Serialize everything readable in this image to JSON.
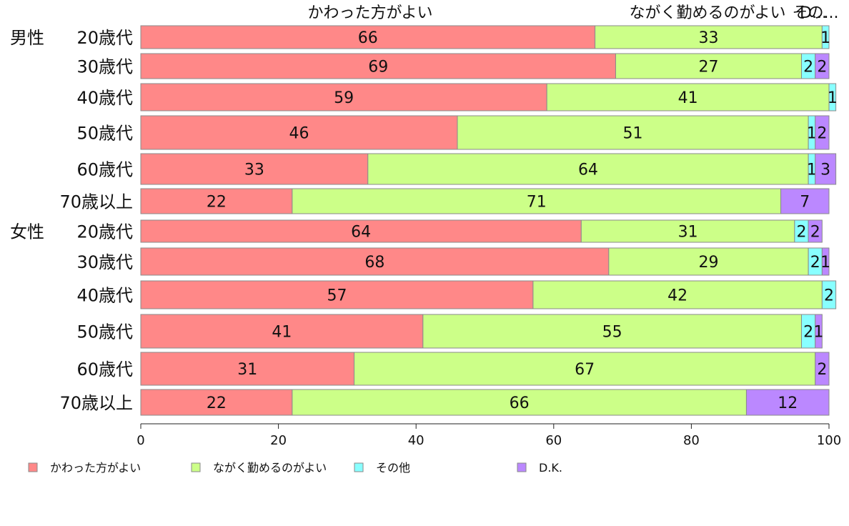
{
  "chart_data": {
    "type": "bar",
    "orientation": "horizontal",
    "stacked": true,
    "xlim": [
      0,
      100
    ],
    "x_ticks": [
      "0",
      "20",
      "40",
      "60",
      "80",
      "100"
    ],
    "column_titles": [
      {
        "series": 0,
        "text": "かわった方がよい"
      },
      {
        "series": 1,
        "text": "ながく勤めるのがよい"
      },
      {
        "series": 2,
        "text": "その..."
      },
      {
        "series": 3,
        "text": "D..."
      }
    ],
    "groups": [
      "男性",
      "女性"
    ],
    "categories": [
      "20歳代",
      "30歳代",
      "40歳代",
      "50歳代",
      "60歳代",
      "70歳以上",
      "20歳代",
      "30歳代",
      "40歳代",
      "50歳代",
      "60歳代",
      "70歳以上"
    ],
    "series": [
      {
        "name": "かわった方がよい",
        "color": "#ff8888",
        "values": [
          66,
          69,
          59,
          46,
          33,
          22,
          64,
          68,
          57,
          41,
          31,
          22
        ]
      },
      {
        "name": "ながく勤めるのがよい",
        "color": "#ccff88",
        "values": [
          33,
          27,
          41,
          51,
          64,
          71,
          31,
          29,
          42,
          55,
          67,
          66
        ]
      },
      {
        "name": "その他",
        "color": "#88ffff",
        "values": [
          1,
          2,
          1,
          1,
          1,
          0,
          2,
          2,
          2,
          2,
          0,
          0
        ]
      },
      {
        "name": "D.K.",
        "color": "#bb88ff",
        "values": [
          0,
          2,
          0,
          2,
          3,
          7,
          2,
          1,
          0,
          1,
          2,
          12
        ]
      }
    ],
    "grid": false,
    "legend_position": "bottom"
  }
}
